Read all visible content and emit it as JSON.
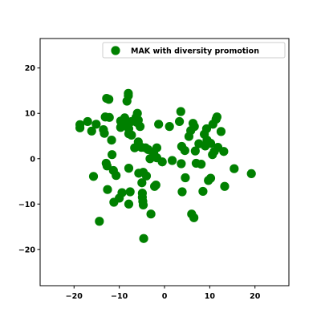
{
  "chart_data": {
    "type": "scatter",
    "title": "",
    "xlabel": "",
    "ylabel": "",
    "xlim": [
      -27.5,
      27.5
    ],
    "ylim": [
      -28,
      26.5
    ],
    "x_ticks": [
      -20,
      -10,
      0,
      10,
      20
    ],
    "y_ticks": [
      -20,
      -10,
      0,
      10,
      20
    ],
    "x_tick_labels": [
      "−20",
      "−10",
      "0",
      "10",
      "20"
    ],
    "y_tick_labels": [
      "−20",
      "−10",
      "0",
      "10",
      "20"
    ],
    "grid": false,
    "legend_position": "top-right",
    "colors": {
      "series": "#008000",
      "axis": "#000000",
      "background": "#ffffff"
    },
    "series": [
      {
        "name": "MAK with diversity promotion",
        "marker": "circle",
        "points": [
          [
            -18.7,
            7.5
          ],
          [
            -18.7,
            6.8
          ],
          [
            -17.0,
            8.2
          ],
          [
            -16.1,
            6.1
          ],
          [
            -15.1,
            7.6
          ],
          [
            -13.5,
            6.4
          ],
          [
            -13.3,
            5.6
          ],
          [
            -13.1,
            9.2
          ],
          [
            -12.8,
            13.3
          ],
          [
            -12.3,
            13.1
          ],
          [
            -12.2,
            9.1
          ],
          [
            -11.7,
            4.1
          ],
          [
            -15.7,
            -3.9
          ],
          [
            -14.4,
            -13.8
          ],
          [
            -12.9,
            -1.0
          ],
          [
            -12.7,
            -1.6
          ],
          [
            -12.6,
            -6.8
          ],
          [
            -11.6,
            0.9
          ],
          [
            -11.3,
            -2.6
          ],
          [
            -11.2,
            -9.6
          ],
          [
            -10.7,
            -3.7
          ],
          [
            -10.0,
            -8.7
          ],
          [
            -9.7,
            6.9
          ],
          [
            -9.7,
            8.3
          ],
          [
            -9.4,
            -7.5
          ],
          [
            -8.8,
            9.0
          ],
          [
            -8.6,
            7.9
          ],
          [
            -8.3,
            12.7
          ],
          [
            -8.0,
            13.9
          ],
          [
            -8.0,
            14.4
          ],
          [
            -7.9,
            6.6
          ],
          [
            -7.9,
            5.5
          ],
          [
            -7.9,
            -2.1
          ],
          [
            -7.9,
            -10.0
          ],
          [
            -7.6,
            -7.3
          ],
          [
            -7.3,
            5.2
          ],
          [
            -7.3,
            8.2
          ],
          [
            -6.6,
            2.4
          ],
          [
            -6.3,
            9.1
          ],
          [
            -6.1,
            8.0
          ],
          [
            -6.0,
            10.0
          ],
          [
            -5.8,
            3.7
          ],
          [
            -5.8,
            8.5
          ],
          [
            -5.7,
            -3.2
          ],
          [
            -5.4,
            7.1
          ],
          [
            -5.1,
            2.5
          ],
          [
            -5.0,
            -5.3
          ],
          [
            -4.9,
            -7.6
          ],
          [
            -4.9,
            -8.5
          ],
          [
            -4.8,
            -9.4
          ],
          [
            -4.7,
            -3.0
          ],
          [
            -4.7,
            -10.2
          ],
          [
            -4.6,
            -17.6
          ],
          [
            -4.2,
            2.4
          ],
          [
            -4.0,
            -3.8
          ],
          [
            -3.6,
            2.0
          ],
          [
            -3.2,
            0.0
          ],
          [
            -3.0,
            -12.2
          ],
          [
            -2.4,
            1.2
          ],
          [
            -2.2,
            -6.1
          ],
          [
            -1.9,
            -5.8
          ],
          [
            -1.7,
            0.2
          ],
          [
            -1.7,
            2.4
          ],
          [
            -1.3,
            7.6
          ],
          [
            -0.5,
            -0.7
          ],
          [
            1.1,
            7.1
          ],
          [
            1.7,
            -0.4
          ],
          [
            3.3,
            8.2
          ],
          [
            3.6,
            10.4
          ],
          [
            3.7,
            -1.1
          ],
          [
            3.8,
            2.7
          ],
          [
            3.9,
            -7.3
          ],
          [
            4.5,
            1.8
          ],
          [
            4.6,
            -4.2
          ],
          [
            5.4,
            4.9
          ],
          [
            5.8,
            6.2
          ],
          [
            6.0,
            -12.2
          ],
          [
            6.3,
            7.8
          ],
          [
            6.5,
            -13.0
          ],
          [
            6.6,
            7.1
          ],
          [
            6.8,
            1.7
          ],
          [
            7.0,
            -1.0
          ],
          [
            7.6,
            3.3
          ],
          [
            8.1,
            -1.2
          ],
          [
            8.5,
            -7.2
          ],
          [
            8.8,
            5.4
          ],
          [
            9.0,
            2.8
          ],
          [
            9.3,
            6.6
          ],
          [
            9.4,
            4.1
          ],
          [
            9.7,
            -4.8
          ],
          [
            10.2,
            3.4
          ],
          [
            10.2,
            -4.3
          ],
          [
            10.6,
            0.9
          ],
          [
            10.7,
            7.6
          ],
          [
            11.0,
            1.6
          ],
          [
            11.4,
            8.7
          ],
          [
            11.6,
            9.2
          ],
          [
            11.8,
            2.5
          ],
          [
            12.5,
            6.0
          ],
          [
            13.1,
            1.6
          ],
          [
            13.3,
            -6.1
          ],
          [
            15.4,
            -2.2
          ],
          [
            19.2,
            -3.3
          ]
        ]
      }
    ]
  }
}
